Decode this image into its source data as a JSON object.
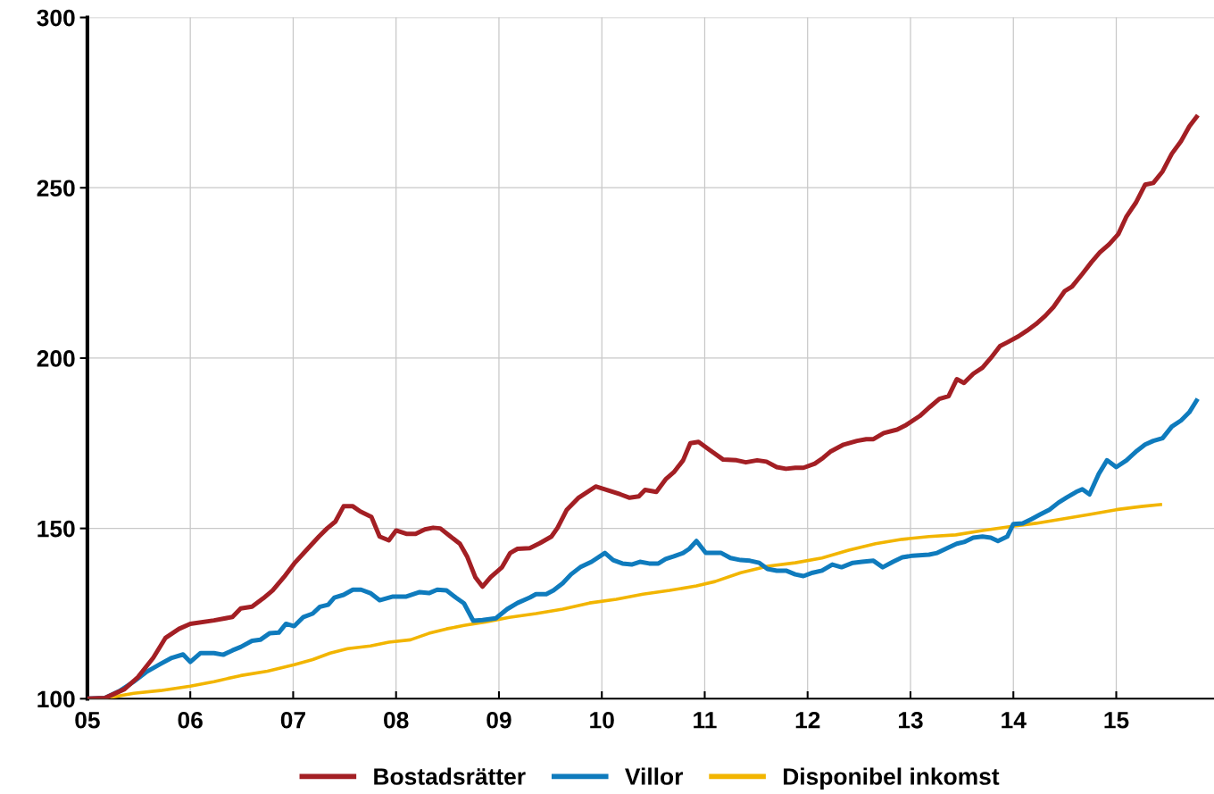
{
  "chart_data": {
    "type": "line",
    "xlim": [
      2005,
      2015.95
    ],
    "ylim": [
      100,
      300
    ],
    "xticks": [
      {
        "value": 2005,
        "label": "05"
      },
      {
        "value": 2006,
        "label": "06"
      },
      {
        "value": 2007,
        "label": "07"
      },
      {
        "value": 2008,
        "label": "08"
      },
      {
        "value": 2009,
        "label": "09"
      },
      {
        "value": 2010,
        "label": "10"
      },
      {
        "value": 2011,
        "label": "11"
      },
      {
        "value": 2012,
        "label": "12"
      },
      {
        "value": 2013,
        "label": "13"
      },
      {
        "value": 2014,
        "label": "14"
      },
      {
        "value": 2015,
        "label": "15"
      }
    ],
    "yticks": [
      100,
      150,
      200,
      250,
      300
    ],
    "grid": true,
    "legend": "bottom",
    "marker": "none",
    "line_style": "solid",
    "series": [
      {
        "name": "Bostadsrätter",
        "color": "#a31f24",
        "x": [
          2005.0,
          2005.17,
          2005.36,
          2005.49,
          2005.64,
          2005.76,
          2005.89,
          2006.0,
          2006.23,
          2006.41,
          2006.49,
          2006.6,
          2006.71,
          2006.8,
          2006.91,
          2007.01,
          2007.14,
          2007.25,
          2007.33,
          2007.41,
          2007.49,
          2007.58,
          2007.65,
          2007.76,
          2007.84,
          2007.93,
          2008.0,
          2008.1,
          2008.19,
          2008.28,
          2008.36,
          2008.43,
          2008.53,
          2008.62,
          2008.69,
          2008.77,
          2008.84,
          2008.92,
          2009.03,
          2009.11,
          2009.18,
          2009.3,
          2009.4,
          2009.51,
          2009.57,
          2009.66,
          2009.77,
          2009.94,
          2010.05,
          2010.18,
          2010.27,
          2010.36,
          2010.42,
          2010.53,
          2010.62,
          2010.7,
          2010.79,
          2010.86,
          2010.94,
          2011.05,
          2011.18,
          2011.31,
          2011.4,
          2011.51,
          2011.6,
          2011.7,
          2011.79,
          2011.88,
          2011.96,
          2012.07,
          2012.15,
          2012.22,
          2012.35,
          2012.48,
          2012.57,
          2012.64,
          2012.74,
          2012.87,
          2012.96,
          2013.09,
          2013.19,
          2013.28,
          2013.37,
          2013.45,
          2013.52,
          2013.61,
          2013.7,
          2013.78,
          2013.87,
          2013.94,
          2014.05,
          2014.13,
          2014.22,
          2014.31,
          2014.39,
          2014.5,
          2014.57,
          2014.67,
          2014.76,
          2014.84,
          2014.93,
          2015.02,
          2015.1,
          2015.19,
          2015.28,
          2015.36,
          2015.45,
          2015.54,
          2015.63,
          2015.71,
          2015.78
        ],
        "values": [
          100,
          100.2,
          102.8,
          106.3,
          112,
          117.9,
          120.5,
          122,
          123,
          124,
          126.5,
          127,
          129.5,
          131.8,
          135.7,
          139.7,
          144,
          147.6,
          150,
          152,
          156.5,
          156.5,
          155,
          153.4,
          147.6,
          146.5,
          149.4,
          148.4,
          148.4,
          149.7,
          150.2,
          150,
          147.6,
          145.5,
          141.8,
          135.7,
          132.9,
          135.7,
          138.6,
          142.8,
          144,
          144.2,
          145.7,
          147.6,
          150.2,
          155.5,
          158.9,
          162.3,
          161.3,
          160,
          159,
          159.4,
          161.3,
          160.7,
          164.4,
          166.5,
          170,
          175,
          175.4,
          173,
          170.2,
          170,
          169.4,
          170,
          169.6,
          168,
          167.5,
          167.8,
          167.8,
          169,
          170.7,
          172.5,
          174.6,
          175.7,
          176.2,
          176.2,
          178,
          179,
          180.4,
          183,
          185.7,
          188,
          188.8,
          193.8,
          192.7,
          195.4,
          197.2,
          200,
          203.5,
          204.6,
          206.4,
          208,
          210,
          212.4,
          215,
          219.7,
          221,
          224.7,
          228.2,
          231,
          233.4,
          236.4,
          241.6,
          245.6,
          250.9,
          251.4,
          254.8,
          260,
          263.7,
          268,
          270.8
        ]
      },
      {
        "name": "Villor",
        "color": "#0f7bbd",
        "x": [
          2005.0,
          2005.17,
          2005.32,
          2005.45,
          2005.58,
          2005.71,
          2005.82,
          2005.93,
          2006.0,
          2006.1,
          2006.23,
          2006.32,
          2006.41,
          2006.49,
          2006.6,
          2006.68,
          2006.77,
          2006.86,
          2006.93,
          2007.01,
          2007.1,
          2007.19,
          2007.26,
          2007.34,
          2007.4,
          2007.49,
          2007.58,
          2007.66,
          2007.75,
          2007.84,
          2007.97,
          2008.1,
          2008.23,
          2008.32,
          2008.4,
          2008.49,
          2008.58,
          2008.66,
          2008.75,
          2008.84,
          2008.97,
          2009.08,
          2009.18,
          2009.3,
          2009.36,
          2009.46,
          2009.53,
          2009.62,
          2009.7,
          2009.79,
          2009.9,
          2010.03,
          2010.11,
          2010.2,
          2010.29,
          2010.37,
          2010.46,
          2010.55,
          2010.62,
          2010.7,
          2010.79,
          2010.85,
          2010.92,
          2011.01,
          2011.16,
          2011.25,
          2011.35,
          2011.44,
          2011.53,
          2011.61,
          2011.7,
          2011.79,
          2011.88,
          2011.96,
          2012.05,
          2012.14,
          2012.24,
          2012.33,
          2012.44,
          2012.53,
          2012.64,
          2012.73,
          2012.83,
          2012.92,
          2013.02,
          2013.18,
          2013.26,
          2013.37,
          2013.45,
          2013.52,
          2013.61,
          2013.7,
          2013.78,
          2013.85,
          2013.94,
          2014.0,
          2014.09,
          2014.18,
          2014.26,
          2014.35,
          2014.44,
          2014.52,
          2014.61,
          2014.67,
          2014.74,
          2014.83,
          2014.91,
          2015.0,
          2015.1,
          2015.19,
          2015.28,
          2015.36,
          2015.45,
          2015.54,
          2015.63,
          2015.71,
          2015.78
        ],
        "values": [
          100,
          100.2,
          102.4,
          105,
          108,
          110.2,
          112,
          113,
          110.8,
          113.4,
          113.4,
          112.9,
          114.2,
          115.2,
          117,
          117.3,
          119.2,
          119.4,
          122,
          121.3,
          124,
          125,
          127,
          127.6,
          129.7,
          130.5,
          132,
          132,
          131,
          128.9,
          130,
          130,
          131.3,
          131,
          132,
          131.8,
          129.7,
          128,
          122.9,
          123.1,
          123.6,
          126.3,
          128.1,
          129.7,
          130.7,
          130.7,
          131.8,
          133.9,
          136.5,
          138.6,
          140.2,
          142.8,
          140.7,
          139.7,
          139.4,
          140.2,
          139.7,
          139.7,
          141,
          141.8,
          142.8,
          144,
          146.3,
          142.8,
          142.8,
          141.3,
          140.7,
          140.5,
          139.9,
          138.1,
          137.6,
          137.6,
          136.5,
          136,
          137,
          137.6,
          139.4,
          138.6,
          139.9,
          140.2,
          140.5,
          138.6,
          140.2,
          141.5,
          142,
          142.3,
          142.8,
          144.4,
          145.5,
          146,
          147.3,
          147.6,
          147.3,
          146.3,
          147.6,
          151.3,
          151.5,
          152.8,
          154.1,
          155.5,
          157.6,
          159.1,
          160.7,
          161.5,
          160,
          166,
          170,
          168,
          170,
          172.5,
          174.6,
          175.7,
          176.5,
          179.9,
          181.7,
          184.1,
          187.5
        ]
      },
      {
        "name": "Disponibel inkomst",
        "color": "#f2b500",
        "x": [
          2005.0,
          2005.19,
          2005.45,
          2005.71,
          2006.0,
          2006.23,
          2006.49,
          2006.75,
          2007.01,
          2007.19,
          2007.36,
          2007.53,
          2007.75,
          2007.93,
          2008.14,
          2008.32,
          2008.49,
          2008.66,
          2008.88,
          2009.1,
          2009.36,
          2009.62,
          2009.88,
          2010.14,
          2010.4,
          2010.66,
          2010.92,
          2011.1,
          2011.35,
          2011.61,
          2011.88,
          2012.14,
          2012.4,
          2012.66,
          2012.92,
          2013.18,
          2013.44,
          2013.7,
          2013.96,
          2014.22,
          2014.48,
          2014.74,
          2015.0,
          2015.26,
          2015.43
        ],
        "values": [
          100,
          100.2,
          101.6,
          102.4,
          103.7,
          105,
          106.8,
          108.1,
          110,
          111.5,
          113.4,
          114.7,
          115.5,
          116.6,
          117.3,
          119.2,
          120.5,
          121.5,
          122.6,
          123.9,
          125,
          126.3,
          128.1,
          129.2,
          130.7,
          131.8,
          133.1,
          134.4,
          137,
          138.9,
          139.9,
          141.3,
          143.6,
          145.5,
          146.8,
          147.6,
          148.1,
          149.4,
          150.5,
          151.5,
          152.8,
          154.1,
          155.5,
          156.5,
          157
        ]
      }
    ]
  }
}
